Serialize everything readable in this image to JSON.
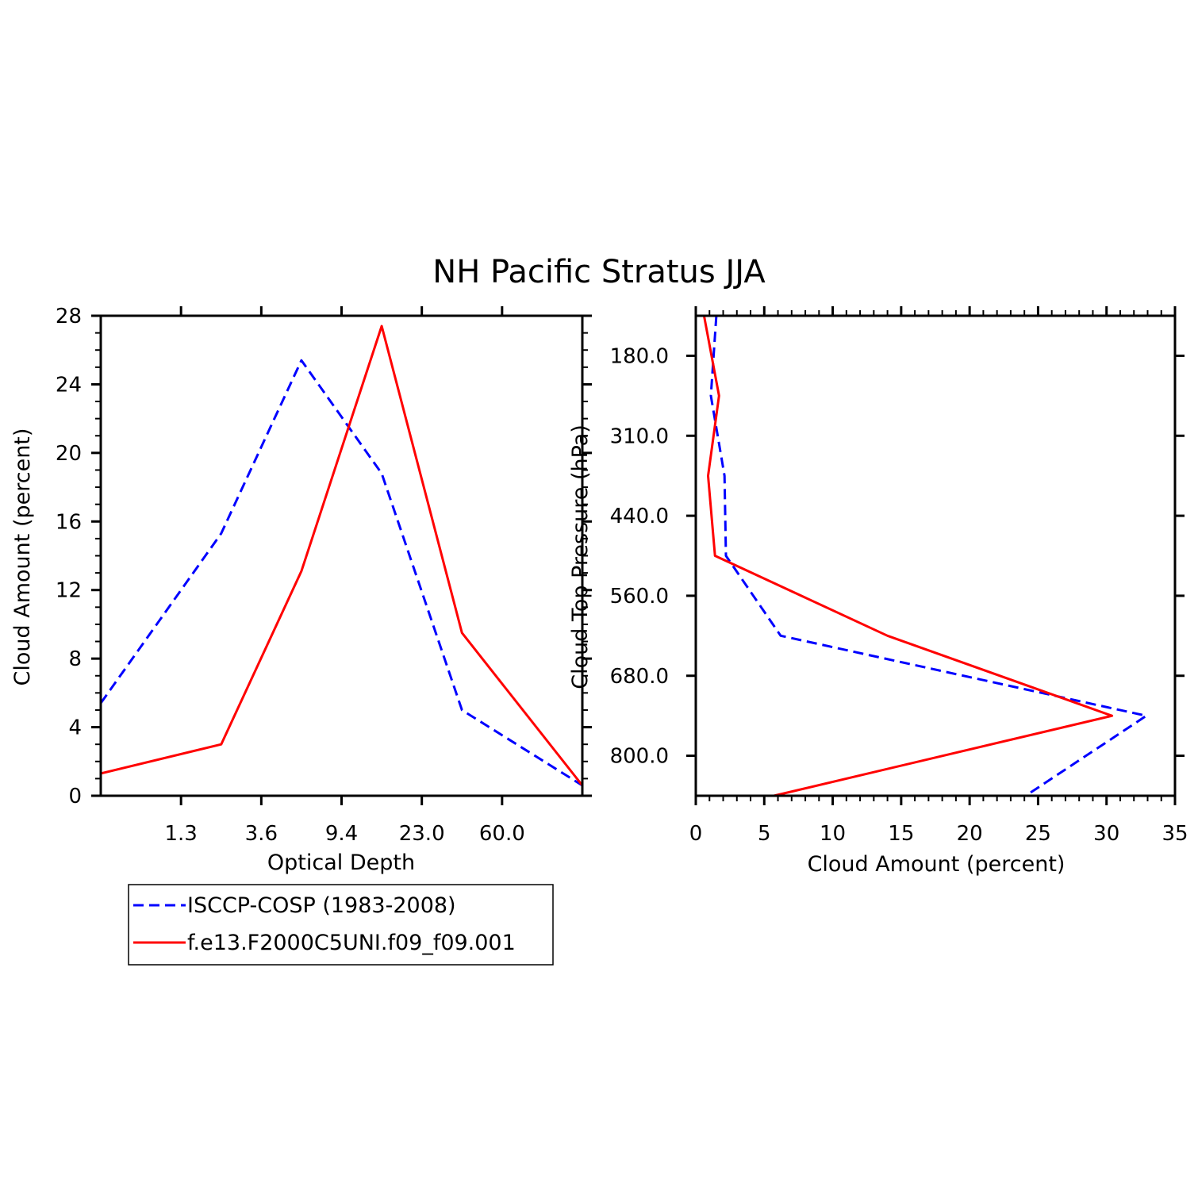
{
  "figure": {
    "title": "NH Pacific Stratus JJA",
    "colors": {
      "obs": "#0000ff",
      "model": "#ff0000",
      "axes": "#000000"
    }
  },
  "legend": {
    "items": [
      {
        "label": "ISCCP-COSP (1983-2008)",
        "color": "#0000ff",
        "style": "dashed"
      },
      {
        "label": "f.e13.F2000C5UNI.f09_f09.001",
        "color": "#ff0000",
        "style": "solid"
      }
    ]
  },
  "chart_data": [
    {
      "type": "line",
      "panel": "left",
      "xlabel": "Optical Depth",
      "ylabel": "Cloud Amount (percent)",
      "x_tick_labels": [
        "1.3",
        "3.6",
        "9.4",
        "23.0",
        "60.0"
      ],
      "x_bins": [
        "0.3",
        "1.3",
        "3.6",
        "9.4",
        "23.0",
        "60.0",
        "379.0"
      ],
      "y_ticks": [
        0,
        4,
        8,
        12,
        16,
        20,
        24,
        28
      ],
      "ylim": [
        0,
        28
      ],
      "grid": false,
      "series": [
        {
          "name": "ISCCP-COSP (1983-2008)",
          "color": "#0000ff",
          "style": "dashed",
          "x": [
            "0.3",
            "2.4",
            "6.5",
            "16.2",
            "41.5",
            "379.0"
          ],
          "y": [
            5.4,
            15.3,
            25.4,
            18.8,
            5.0,
            0.6
          ]
        },
        {
          "name": "f.e13.F2000C5UNI.f09_f09.001",
          "color": "#ff0000",
          "style": "solid",
          "x": [
            "0.3",
            "2.4",
            "6.5",
            "16.2",
            "41.5",
            "379.0"
          ],
          "y": [
            1.3,
            3.0,
            13.1,
            27.4,
            9.5,
            0.6
          ]
        }
      ]
    },
    {
      "type": "line",
      "panel": "right",
      "xlabel": "Cloud Amount (percent)",
      "ylabel": "Cloud Top Pressure (hPa)",
      "x_ticks": [
        0,
        5,
        10,
        15,
        20,
        25,
        30,
        35
      ],
      "xlim": [
        0,
        35
      ],
      "y_tick_labels": [
        "180.0",
        "310.0",
        "440.0",
        "560.0",
        "680.0",
        "800.0"
      ],
      "y_bins": [
        "50.0",
        "180.0",
        "310.0",
        "440.0",
        "560.0",
        "680.0",
        "800.0",
        "1000.0"
      ],
      "y_direction": "pressure increasing downward",
      "grid": false,
      "series": [
        {
          "name": "ISCCP-COSP (1983-2008)",
          "color": "#0000ff",
          "style": "dashed",
          "pressure": [
            "50.0",
            "245.0",
            "375.0",
            "500.0",
            "620.0",
            "740.0",
            "1000.0"
          ],
          "x": [
            1.5,
            1.1,
            2.1,
            2.2,
            6.2,
            32.9,
            24.1
          ]
        },
        {
          "name": "f.e13.F2000C5UNI.f09_f09.001",
          "color": "#ff0000",
          "style": "solid",
          "pressure": [
            "50.0",
            "245.0",
            "375.0",
            "500.0",
            "620.0",
            "740.0",
            "1000.0"
          ],
          "x": [
            0.6,
            1.7,
            0.9,
            1.4,
            14.0,
            30.4,
            5.7
          ]
        }
      ]
    }
  ]
}
